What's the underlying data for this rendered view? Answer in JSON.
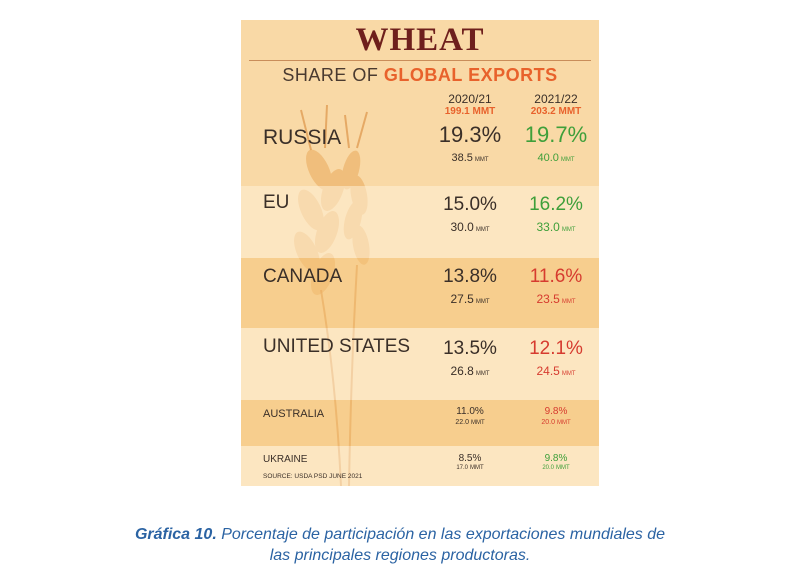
{
  "infographic": {
    "title": "WHEAT",
    "subtitle_prefix": "SHARE OF",
    "subtitle_highlight": "GLOBAL EXPORTS",
    "source": "SOURCE: USDA PSD JUNE 2021"
  },
  "colors": {
    "background": "#f9d9a6",
    "title": "#6e1f1c",
    "highlight": "#e8622c",
    "increase": "#3e9f3a",
    "decrease": "#d63b2f",
    "caption": "#2b63a3"
  },
  "chart_data": {
    "type": "table",
    "title": "WHEAT",
    "subtitle": "SHARE OF GLOBAL EXPORTS",
    "columns": [
      {
        "year": "2020/21",
        "total": "199.1 MMT"
      },
      {
        "year": "2021/22",
        "total": "203.2 MMT"
      }
    ],
    "rows": [
      {
        "country": "RUSSIA",
        "share": [
          "19.3%",
          "19.7%"
        ],
        "volume": [
          "38.5",
          "40.0"
        ],
        "unit": "MMT",
        "change": "up"
      },
      {
        "country": "EU",
        "share": [
          "15.0%",
          "16.2%"
        ],
        "volume": [
          "30.0",
          "33.0"
        ],
        "unit": "MMT",
        "change": "up"
      },
      {
        "country": "CANADA",
        "share": [
          "13.8%",
          "11.6%"
        ],
        "volume": [
          "27.5",
          "23.5"
        ],
        "unit": "MMT",
        "change": "down"
      },
      {
        "country": "UNITED STATES",
        "share": [
          "13.5%",
          "12.1%"
        ],
        "volume": [
          "26.8",
          "24.5"
        ],
        "unit": "MMT",
        "change": "down"
      },
      {
        "country": "AUSTRALIA",
        "share": [
          "11.0%",
          "9.8%"
        ],
        "volume": [
          "22.0",
          "20.0"
        ],
        "unit": "MMT",
        "change": "down"
      },
      {
        "country": "UKRAINE",
        "share": [
          "8.5%",
          "9.8%"
        ],
        "volume": [
          "17.0",
          "20.0"
        ],
        "unit": "MMT",
        "change": "up"
      }
    ]
  },
  "caption": {
    "label": "Gráfica 10.",
    "text_line1": "Porcentaje de participación en las exportaciones mundiales de",
    "text_line2": "las principales regiones productoras."
  }
}
